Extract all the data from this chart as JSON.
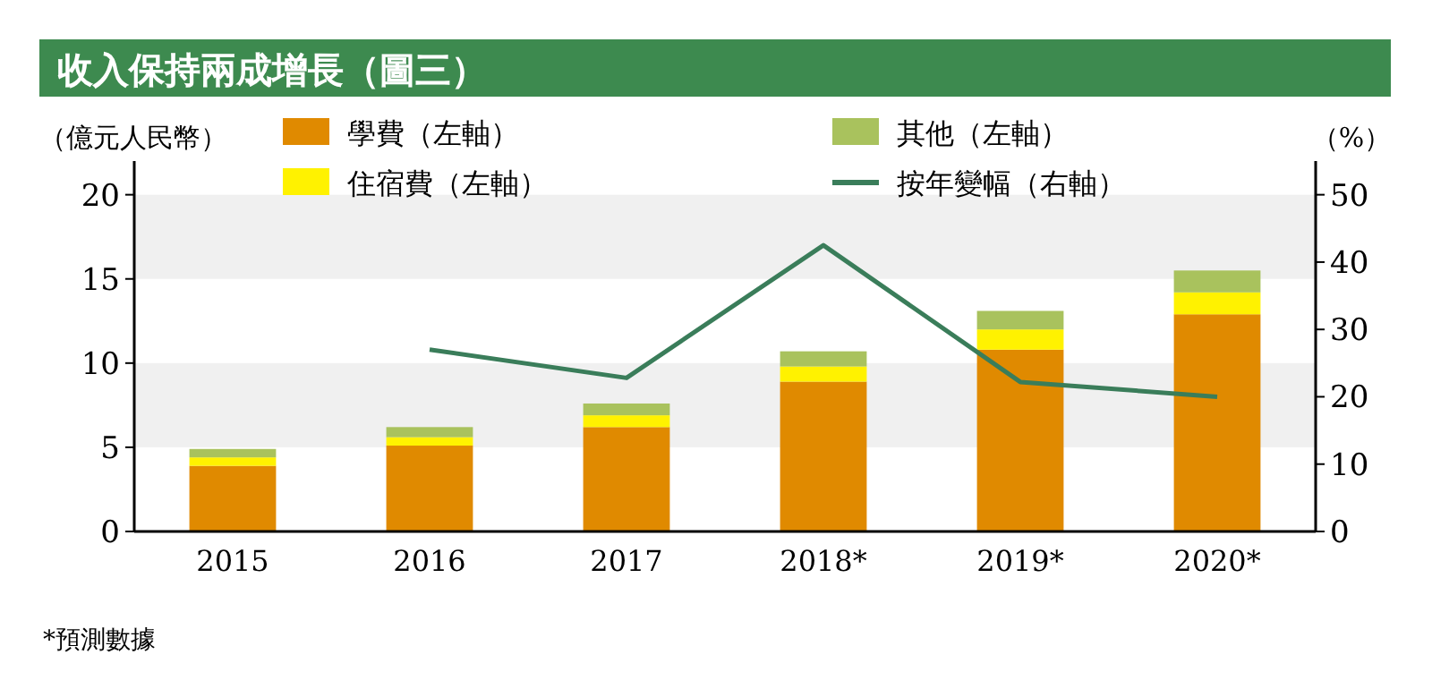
{
  "chart_data": {
    "type": "bar",
    "title": "收入保持兩成增長（圖三）",
    "ylabel": "（億元人民幣）",
    "y2label": "（%）",
    "categories": [
      "2015",
      "2016",
      "2017",
      "2018*",
      "2019*",
      "2020*"
    ],
    "stacked": true,
    "series": [
      {
        "name": "學費（左軸）",
        "color": "#e08a00",
        "values": [
          3.9,
          5.1,
          6.2,
          8.9,
          10.8,
          12.9
        ]
      },
      {
        "name": "住宿費（左軸）",
        "color": "#fff200",
        "values": [
          0.5,
          0.5,
          0.7,
          0.9,
          1.2,
          1.3
        ]
      },
      {
        "name": "其他（左軸）",
        "color": "#a9c25d",
        "values": [
          0.5,
          0.6,
          0.7,
          0.9,
          1.1,
          1.3
        ]
      },
      {
        "name": "按年變幅（右軸）",
        "type": "line",
        "axis": "y2",
        "color": "#3a7d5a",
        "values": [
          null,
          27,
          22.8,
          42.5,
          22.2,
          20
        ]
      }
    ],
    "ylim": [
      0,
      22
    ],
    "yticks": [
      0,
      5,
      10,
      15,
      20
    ],
    "y2lim": [
      0,
      55
    ],
    "y2ticks": [
      0,
      10,
      20,
      30,
      40,
      50
    ],
    "bands": [
      {
        "axis": "y",
        "from": 5,
        "to": 10,
        "color": "#f0f0f0"
      },
      {
        "axis": "y",
        "from": 15,
        "to": 20,
        "color": "#f0f0f0"
      }
    ],
    "legend": "top",
    "marker": "none",
    "line_style": "solid",
    "annotations": [
      "*預測數據"
    ]
  }
}
